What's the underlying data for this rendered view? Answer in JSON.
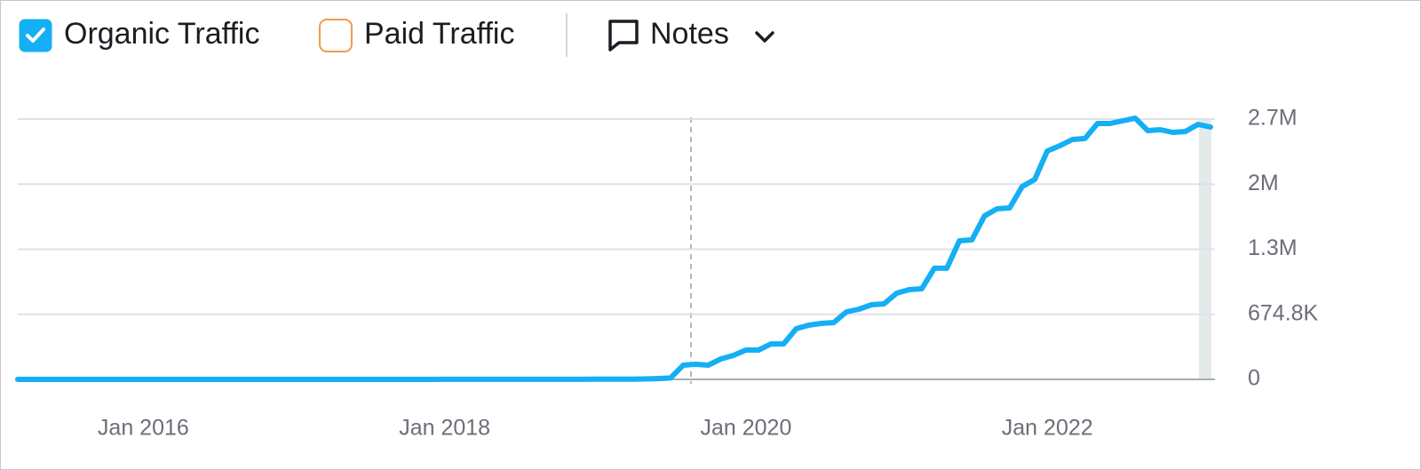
{
  "toolbar": {
    "paid_traffic_label": "Paid Traffic",
    "paid_traffic_color": "#f59a4c",
    "notes_label": "Notes"
  },
  "chart_data": {
    "type": "line",
    "x": [
      "2015-03",
      "2015-04",
      "2015-05",
      "2015-06",
      "2015-07",
      "2015-08",
      "2015-09",
      "2015-10",
      "2015-11",
      "2015-12",
      "2016-01",
      "2016-02",
      "2016-03",
      "2016-04",
      "2016-05",
      "2016-06",
      "2016-07",
      "2016-08",
      "2016-09",
      "2016-10",
      "2016-11",
      "2016-12",
      "2017-01",
      "2017-02",
      "2017-03",
      "2017-04",
      "2017-05",
      "2017-06",
      "2017-07",
      "2017-08",
      "2017-09",
      "2017-10",
      "2017-11",
      "2017-12",
      "2018-01",
      "2018-02",
      "2018-03",
      "2018-04",
      "2018-05",
      "2018-06",
      "2018-07",
      "2018-08",
      "2018-09",
      "2018-10",
      "2018-11",
      "2018-12",
      "2019-01",
      "2019-02",
      "2019-03",
      "2019-04",
      "2019-05",
      "2019-06",
      "2019-07",
      "2019-08",
      "2019-09",
      "2019-10",
      "2019-11",
      "2019-12",
      "2020-01",
      "2020-02",
      "2020-03",
      "2020-04",
      "2020-05",
      "2020-06",
      "2020-07",
      "2020-08",
      "2020-09",
      "2020-10",
      "2020-11",
      "2020-12",
      "2021-01",
      "2021-02",
      "2021-03",
      "2021-04",
      "2021-05",
      "2021-06",
      "2021-07",
      "2021-08",
      "2021-09",
      "2021-10",
      "2021-11",
      "2021-12",
      "2022-01",
      "2022-02",
      "2022-03",
      "2022-04",
      "2022-05",
      "2022-06",
      "2022-07",
      "2022-08",
      "2022-09",
      "2022-10",
      "2022-11",
      "2022-12",
      "2023-01",
      "2023-02"
    ],
    "series": [
      {
        "name": "Organic Traffic",
        "color": "#14aff5",
        "checked": true,
        "values": [
          0,
          0,
          0,
          0,
          0,
          0,
          0,
          0,
          0,
          0,
          0,
          0,
          0,
          0,
          0,
          0,
          0,
          0,
          0,
          0,
          0,
          0,
          0,
          0,
          0,
          0,
          0,
          0,
          0,
          0,
          0,
          0,
          0,
          0,
          1000,
          1000,
          1000,
          1000,
          1000,
          1000,
          1000,
          1000,
          1000,
          1000,
          1000,
          1000,
          2000,
          2000,
          3000,
          3000,
          5000,
          8000,
          15000,
          147000,
          157000,
          147000,
          212000,
          249000,
          304000,
          304000,
          368000,
          368000,
          525000,
          562000,
          580000,
          590000,
          700000,
          728000,
          774000,
          783000,
          894000,
          930000,
          940000,
          1152000,
          1152000,
          1437000,
          1446000,
          1695000,
          1769000,
          1778000,
          1999000,
          2073000,
          2368000,
          2423000,
          2487000,
          2497000,
          2653000,
          2653000,
          2681000,
          2708000,
          2579000,
          2589000,
          2561000,
          2570000,
          2644000,
          2616000
        ]
      }
    ],
    "xlim": [
      "2015-03",
      "2023-02"
    ],
    "xticks": [
      {
        "value": "2016-01",
        "label": "Jan 2016"
      },
      {
        "value": "2018-01",
        "label": "Jan 2018"
      },
      {
        "value": "2020-01",
        "label": "Jan 2020"
      },
      {
        "value": "2022-01",
        "label": "Jan 2022"
      }
    ],
    "ylim": [
      0,
      2699200
    ],
    "yticks": [
      {
        "value": 0,
        "label": "0"
      },
      {
        "value": 674800,
        "label": "674.8K"
      },
      {
        "value": 1349600,
        "label": "1.3M"
      },
      {
        "value": 2024400,
        "label": "2M"
      },
      {
        "value": 2699200,
        "label": "2.7M"
      }
    ],
    "grid": true
  }
}
